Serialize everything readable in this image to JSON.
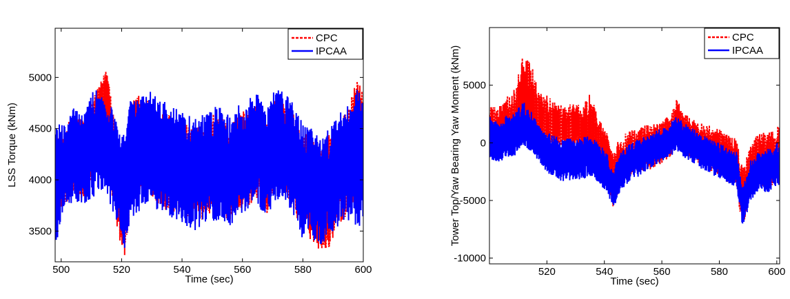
{
  "chart_data": [
    {
      "type": "line",
      "title": "",
      "xlabel": "Time (sec)",
      "ylabel": "LSS Torque (kNm)",
      "xlim": [
        498,
        600
      ],
      "ylim": [
        3200,
        5480
      ],
      "xticks": [
        500,
        520,
        540,
        560,
        580,
        600
      ],
      "yticks": [
        3500,
        4000,
        4500,
        5000
      ],
      "xtick_labels": [
        "500",
        "520",
        "540",
        "560",
        "580",
        "600"
      ],
      "ytick_labels": [
        "3500",
        "4000",
        "4500",
        "5000"
      ],
      "grid": false,
      "legend": "top-right",
      "series": [
        {
          "name": "CPC",
          "color": "#ff0000",
          "style": "dashed",
          "x": [
            498,
            501,
            504,
            507,
            510,
            513,
            515,
            517,
            519,
            521,
            523,
            526,
            529,
            532,
            535,
            538,
            541,
            544,
            547,
            550,
            553,
            556,
            559,
            562,
            565,
            568,
            571,
            574,
            577,
            580,
            583,
            586,
            589,
            592,
            595,
            598,
            600
          ],
          "y": [
            4100,
            4150,
            4300,
            4200,
            4350,
            4700,
            4950,
            4300,
            3800,
            3750,
            4200,
            4400,
            4350,
            4250,
            4200,
            4150,
            4100,
            4050,
            4100,
            4200,
            4150,
            4100,
            4200,
            4250,
            4300,
            4150,
            4400,
            4350,
            4200,
            4000,
            3900,
            3850,
            3950,
            4100,
            4250,
            4650,
            4400
          ],
          "envelope": [
            [
              4450,
              3700
            ],
            [
              4500,
              3750
            ],
            [
              4650,
              3850
            ],
            [
              4600,
              3800
            ],
            [
              4750,
              3950
            ],
            [
              4950,
              4200
            ],
            [
              5080,
              4550
            ],
            [
              4800,
              3800
            ],
            [
              4300,
              3400
            ],
            [
              4200,
              3250
            ],
            [
              4750,
              3700
            ],
            [
              4850,
              3800
            ],
            [
              4800,
              3850
            ],
            [
              4700,
              3750
            ],
            [
              4650,
              3700
            ],
            [
              4600,
              3650
            ],
            [
              4550,
              3600
            ],
            [
              4500,
              3550
            ],
            [
              4550,
              3600
            ],
            [
              4650,
              3700
            ],
            [
              4600,
              3650
            ],
            [
              4550,
              3600
            ],
            [
              4650,
              3700
            ],
            [
              4700,
              3750
            ],
            [
              4750,
              3800
            ],
            [
              4600,
              3650
            ],
            [
              4800,
              3900
            ],
            [
              4750,
              3850
            ],
            [
              4650,
              3700
            ],
            [
              4500,
              3500
            ],
            [
              4400,
              3400
            ],
            [
              4350,
              3300
            ],
            [
              4450,
              3350
            ],
            [
              4550,
              3550
            ],
            [
              4700,
              3650
            ],
            [
              5000,
              3900
            ],
            [
              4850,
              3900
            ]
          ]
        },
        {
          "name": "IPCAA",
          "color": "#0000ff",
          "style": "solid",
          "x": [
            498,
            501,
            504,
            507,
            510,
            513,
            515,
            517,
            519,
            521,
            523,
            526,
            529,
            532,
            535,
            538,
            541,
            544,
            547,
            550,
            553,
            556,
            559,
            562,
            565,
            568,
            571,
            574,
            577,
            580,
            583,
            586,
            589,
            592,
            595,
            598,
            600
          ],
          "y": [
            4100,
            4150,
            4250,
            4200,
            4300,
            4400,
            4450,
            4200,
            4050,
            4000,
            4150,
            4300,
            4350,
            4250,
            4200,
            4150,
            4100,
            4050,
            4100,
            4200,
            4150,
            4100,
            4200,
            4250,
            4300,
            4150,
            4350,
            4300,
            4200,
            4000,
            3950,
            3900,
            3950,
            4100,
            4200,
            4400,
            4400
          ],
          "envelope": [
            [
              4600,
              3350
            ],
            [
              4550,
              3650
            ],
            [
              4700,
              3800
            ],
            [
              4650,
              3750
            ],
            [
              4850,
              3800
            ],
            [
              4900,
              3850
            ],
            [
              4650,
              3900
            ],
            [
              4750,
              3650
            ],
            [
              4500,
              3550
            ],
            [
              4450,
              3280
            ],
            [
              4800,
              3600
            ],
            [
              4850,
              3700
            ],
            [
              4900,
              3800
            ],
            [
              4800,
              3700
            ],
            [
              4750,
              3650
            ],
            [
              4700,
              3600
            ],
            [
              4650,
              3550
            ],
            [
              4600,
              3500
            ],
            [
              4650,
              3550
            ],
            [
              4750,
              3600
            ],
            [
              4700,
              3600
            ],
            [
              4650,
              3550
            ],
            [
              4750,
              3650
            ],
            [
              4800,
              3700
            ],
            [
              4850,
              3750
            ],
            [
              4700,
              3600
            ],
            [
              4900,
              3800
            ],
            [
              4850,
              3800
            ],
            [
              4750,
              3650
            ],
            [
              4550,
              3400
            ],
            [
              4500,
              3400
            ],
            [
              4450,
              3350
            ],
            [
              4500,
              3450
            ],
            [
              4650,
              3550
            ],
            [
              4750,
              3600
            ],
            [
              4900,
              3500
            ],
            [
              4800,
              3600
            ]
          ]
        }
      ]
    },
    {
      "type": "line",
      "title": "",
      "xlabel": "Time (sec)",
      "ylabel": "Tower Top/Yaw Bearing Yaw Moment (kNm)",
      "xlim": [
        500,
        601
      ],
      "ylim": [
        -10500,
        10000
      ],
      "xticks": [
        520,
        540,
        560,
        580,
        600
      ],
      "yticks": [
        -10000,
        -5000,
        0,
        5000
      ],
      "xtick_labels": [
        "520",
        "540",
        "560",
        "580",
        "600"
      ],
      "ytick_labels": [
        "-10000",
        "-5000",
        "0",
        "5000"
      ],
      "grid": false,
      "legend": "top-right",
      "series": [
        {
          "name": "CPC",
          "color": "#ff0000",
          "style": "dashed",
          "x": [
            500,
            503,
            506,
            509,
            512,
            514,
            517,
            520,
            523,
            526,
            529,
            532,
            535,
            538,
            541,
            543,
            545,
            548,
            551,
            554,
            557,
            560,
            563,
            565,
            568,
            571,
            574,
            577,
            580,
            583,
            586,
            588,
            591,
            594,
            597,
            600
          ],
          "y": [
            1500,
            1200,
            1800,
            2200,
            3500,
            2800,
            2000,
            1800,
            1500,
            1400,
            1300,
            1200,
            900,
            200,
            -800,
            -3500,
            -2000,
            -1200,
            -900,
            -600,
            -300,
            0,
            400,
            1200,
            600,
            200,
            -300,
            -600,
            -900,
            -1300,
            -1500,
            -5500,
            -2200,
            -1500,
            -1800,
            -1200
          ],
          "envelope": [
            [
              3500,
              -400
            ],
            [
              3200,
              -800
            ],
            [
              4000,
              -200
            ],
            [
              4800,
              500
            ],
            [
              8000,
              1000
            ],
            [
              7500,
              600
            ],
            [
              4500,
              0
            ],
            [
              4200,
              -200
            ],
            [
              3500,
              -400
            ],
            [
              3200,
              -400
            ],
            [
              3500,
              -500
            ],
            [
              3200,
              -600
            ],
            [
              4300,
              -900
            ],
            [
              2200,
              -1500
            ],
            [
              800,
              -2500
            ],
            [
              -1000,
              -5800
            ],
            [
              300,
              -4200
            ],
            [
              1000,
              -3300
            ],
            [
              1200,
              -2800
            ],
            [
              1500,
              -2500
            ],
            [
              1700,
              -2200
            ],
            [
              2000,
              -1800
            ],
            [
              2500,
              -1400
            ],
            [
              3800,
              100
            ],
            [
              2600,
              -1000
            ],
            [
              2000,
              -1500
            ],
            [
              1800,
              -2100
            ],
            [
              1500,
              -2500
            ],
            [
              1200,
              -2800
            ],
            [
              700,
              -3500
            ],
            [
              400,
              -3800
            ],
            [
              -2000,
              -7500
            ],
            [
              0,
              -4500
            ],
            [
              1000,
              -3800
            ],
            [
              900,
              -3900
            ],
            [
              1500,
              -3500
            ]
          ]
        },
        {
          "name": "IPCAA",
          "color": "#0000ff",
          "style": "solid",
          "x": [
            500,
            503,
            506,
            509,
            512,
            514,
            517,
            520,
            523,
            526,
            529,
            532,
            535,
            538,
            541,
            543,
            545,
            548,
            551,
            554,
            557,
            560,
            563,
            565,
            568,
            571,
            574,
            577,
            580,
            583,
            586,
            588,
            591,
            594,
            597,
            600
          ],
          "y": [
            0,
            -300,
            200,
            500,
            1200,
            600,
            -300,
            -900,
            -1300,
            -1400,
            -1500,
            -1300,
            -1200,
            -1700,
            -2600,
            -4200,
            -2800,
            -1900,
            -1500,
            -1000,
            -600,
            -200,
            200,
            700,
            200,
            -300,
            -800,
            -1200,
            -1500,
            -1900,
            -2200,
            -5800,
            -3200,
            -2600,
            -2500,
            -1800
          ],
          "envelope": [
            [
              2500,
              -1400
            ],
            [
              1700,
              -1700
            ],
            [
              2400,
              -1300
            ],
            [
              2600,
              -1100
            ],
            [
              3800,
              -200
            ],
            [
              3000,
              -700
            ],
            [
              1600,
              -1600
            ],
            [
              900,
              -2600
            ],
            [
              600,
              -3100
            ],
            [
              500,
              -3400
            ],
            [
              300,
              -3300
            ],
            [
              500,
              -3200
            ],
            [
              600,
              -3000
            ],
            [
              0,
              -3500
            ],
            [
              -800,
              -4300
            ],
            [
              -2400,
              -5800
            ],
            [
              -1100,
              -4500
            ],
            [
              -200,
              -3600
            ],
            [
              300,
              -3100
            ],
            [
              600,
              -2600
            ],
            [
              900,
              -2100
            ],
            [
              1300,
              -1700
            ],
            [
              1800,
              -1200
            ],
            [
              2500,
              -700
            ],
            [
              1700,
              -1300
            ],
            [
              1200,
              -1800
            ],
            [
              700,
              -2300
            ],
            [
              300,
              -2700
            ],
            [
              0,
              -3100
            ],
            [
              -400,
              -3500
            ],
            [
              -700,
              -3900
            ],
            [
              -3700,
              -7300
            ],
            [
              -1400,
              -5000
            ],
            [
              -700,
              -4200
            ],
            [
              -500,
              -4300
            ],
            [
              0,
              -3700
            ]
          ]
        }
      ]
    }
  ]
}
